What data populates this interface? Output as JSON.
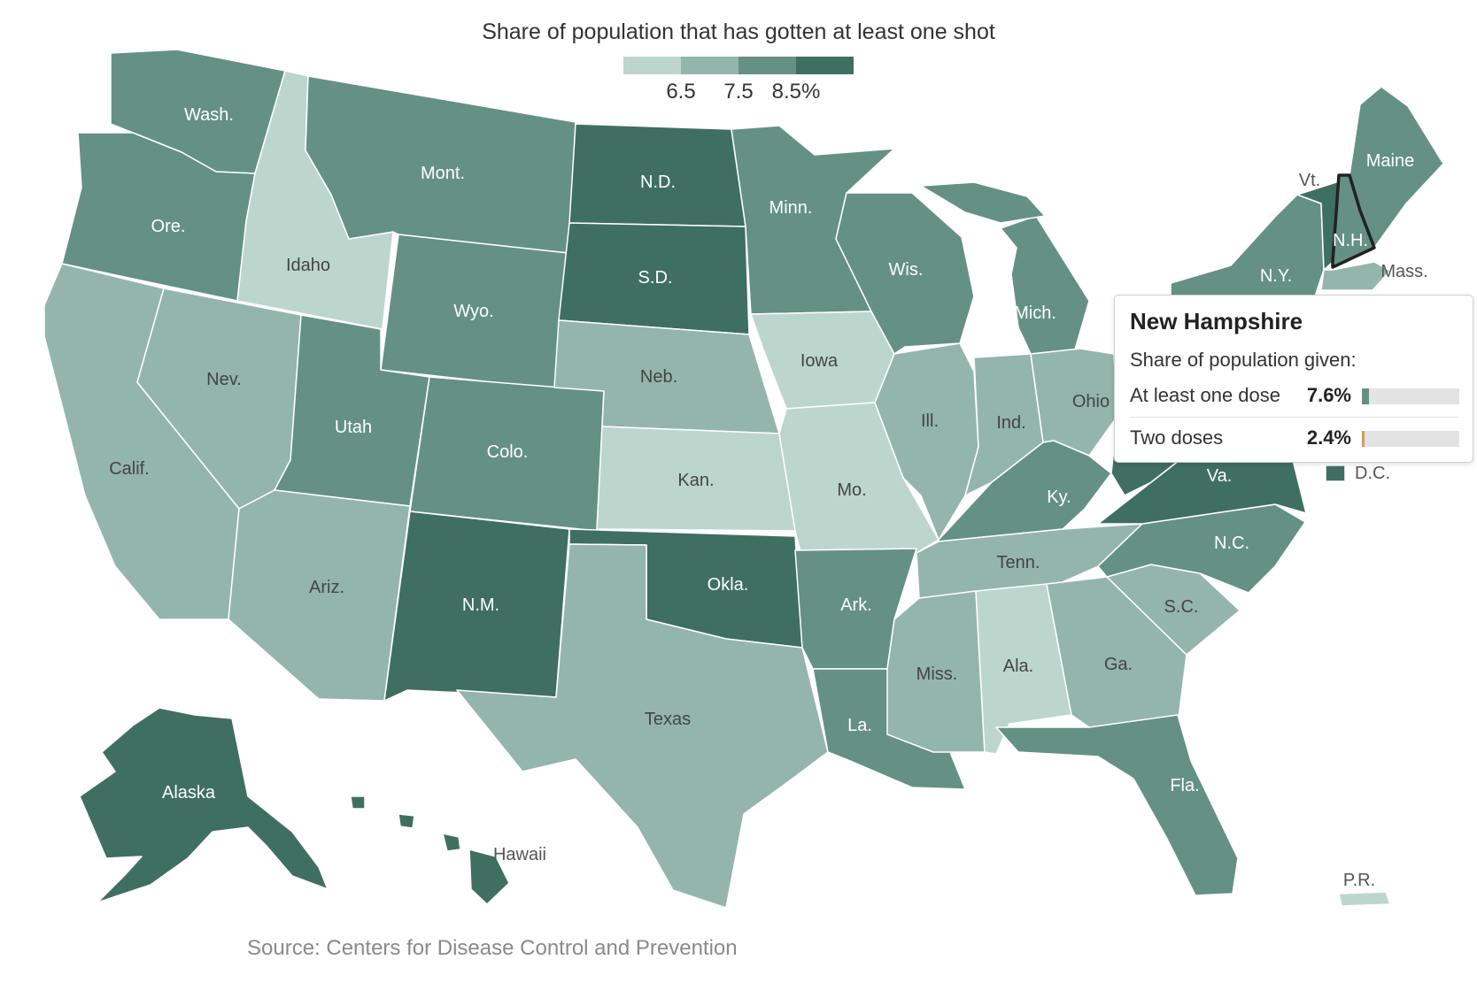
{
  "title": "Share of population that has gotten at least one shot",
  "source": "Source: Centers for Disease Control and Prevention",
  "legend": {
    "ticks": [
      "6.5",
      "7.5",
      "8.5%"
    ],
    "colors": [
      "#bcd6cd",
      "#94b5ab",
      "#649184",
      "#3f6f61"
    ]
  },
  "tooltip": {
    "state": "New Hampshire",
    "subtitle": "Share of population given:",
    "rows": [
      {
        "label": "At least one dose",
        "value": "7.6%",
        "pct": 7.6,
        "color": "#649184"
      },
      {
        "label": "Two doses",
        "value": "2.4%",
        "pct": 2.4,
        "color": "#d39a55"
      }
    ]
  },
  "states": {
    "wa": {
      "label": "Wash.",
      "level": 2
    },
    "or": {
      "label": "Ore.",
      "level": 2
    },
    "ca": {
      "label": "Calif.",
      "level": 1
    },
    "id": {
      "label": "Idaho",
      "level": 0
    },
    "nv": {
      "label": "Nev.",
      "level": 1
    },
    "mt": {
      "label": "Mont.",
      "level": 2
    },
    "wy": {
      "label": "Wyo.",
      "level": 2
    },
    "ut": {
      "label": "Utah",
      "level": 2
    },
    "az": {
      "label": "Ariz.",
      "level": 1
    },
    "co": {
      "label": "Colo.",
      "level": 2
    },
    "nm": {
      "label": "N.M.",
      "level": 3
    },
    "nd": {
      "label": "N.D.",
      "level": 3
    },
    "sd": {
      "label": "S.D.",
      "level": 3
    },
    "ne": {
      "label": "Neb.",
      "level": 1
    },
    "ks": {
      "label": "Kan.",
      "level": 0
    },
    "ok": {
      "label": "Okla.",
      "level": 3
    },
    "tx": {
      "label": "Texas",
      "level": 1
    },
    "mn": {
      "label": "Minn.",
      "level": 2
    },
    "ia": {
      "label": "Iowa",
      "level": 0
    },
    "mo": {
      "label": "Mo.",
      "level": 0
    },
    "ar": {
      "label": "Ark.",
      "level": 2
    },
    "la": {
      "label": "La.",
      "level": 2
    },
    "wi": {
      "label": "Wis.",
      "level": 2
    },
    "il": {
      "label": "Ill.",
      "level": 1
    },
    "mi": {
      "label": "Mich.",
      "level": 2
    },
    "in": {
      "label": "Ind.",
      "level": 1
    },
    "oh": {
      "label": "Ohio",
      "level": 1
    },
    "ky": {
      "label": "Ky.",
      "level": 2
    },
    "tn": {
      "label": "Tenn.",
      "level": 1
    },
    "ms": {
      "label": "Miss.",
      "level": 1
    },
    "al": {
      "label": "Ala.",
      "level": 0
    },
    "ga": {
      "label": "Ga.",
      "level": 1
    },
    "fl": {
      "label": "Fla.",
      "level": 2
    },
    "sc": {
      "label": "S.C.",
      "level": 1
    },
    "nc": {
      "label": "N.C.",
      "level": 2
    },
    "va": {
      "label": "Va.",
      "level": 3
    },
    "wv": {
      "label": "",
      "level": 3
    },
    "ny": {
      "label": "N.Y.",
      "level": 2
    },
    "pa": {
      "label": "",
      "level": 2
    },
    "vt": {
      "label": "Vt.",
      "level": 3
    },
    "nh": {
      "label": "N.H.",
      "level": 2
    },
    "me": {
      "label": "Maine",
      "level": 2
    },
    "ma": {
      "label": "Mass.",
      "level": 1
    },
    "dc": {
      "label": "D.C.",
      "level": 3
    },
    "ak": {
      "label": "Alaska",
      "level": 3
    },
    "hi": {
      "label": "Hawaii",
      "level": 3
    },
    "pr": {
      "label": "P.R.",
      "level": 0
    }
  }
}
